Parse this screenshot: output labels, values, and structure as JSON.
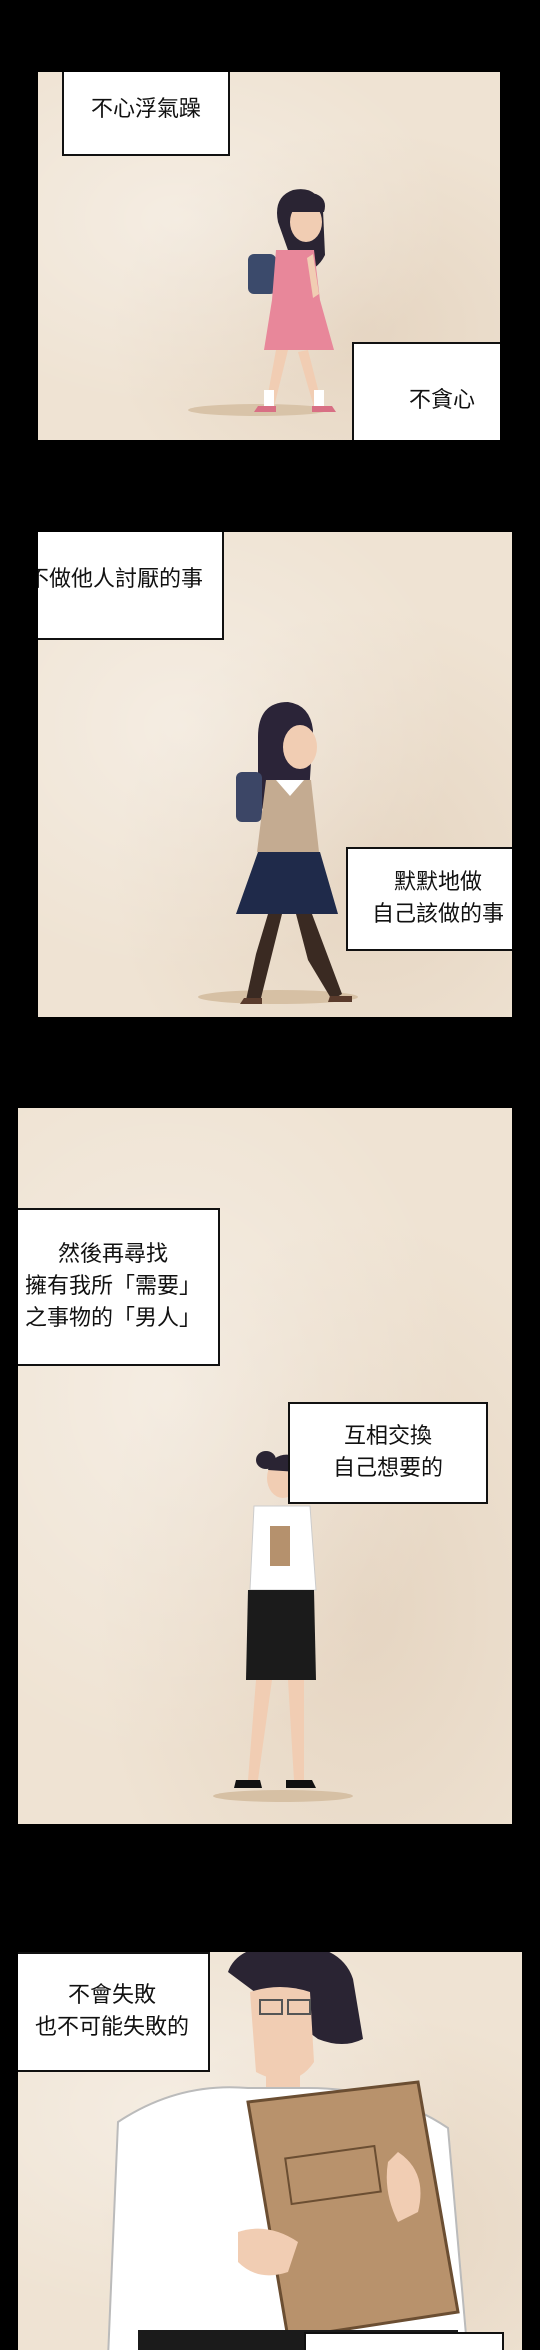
{
  "panel1": {
    "caption_top": [
      "不心浮氣躁"
    ],
    "caption_bottom": [
      "不貪心"
    ]
  },
  "panel2": {
    "caption_top": [
      "不做他人討厭的事"
    ],
    "caption_bottom": [
      "默默地做",
      "自己該做的事"
    ]
  },
  "panel3": {
    "caption_top": [
      "然後再尋找",
      "擁有我所「需要」",
      "之事物的「男人」"
    ],
    "caption_bottom": [
      "互相交換",
      "自己想要的"
    ]
  },
  "panel4": {
    "caption_top": [
      "不會失敗",
      "也不可能失敗的"
    ]
  },
  "colors": {
    "page_background": "#000000",
    "panel_paper": "#efe3d3",
    "bubble_fill": "#ffffff",
    "text": "#111111"
  }
}
